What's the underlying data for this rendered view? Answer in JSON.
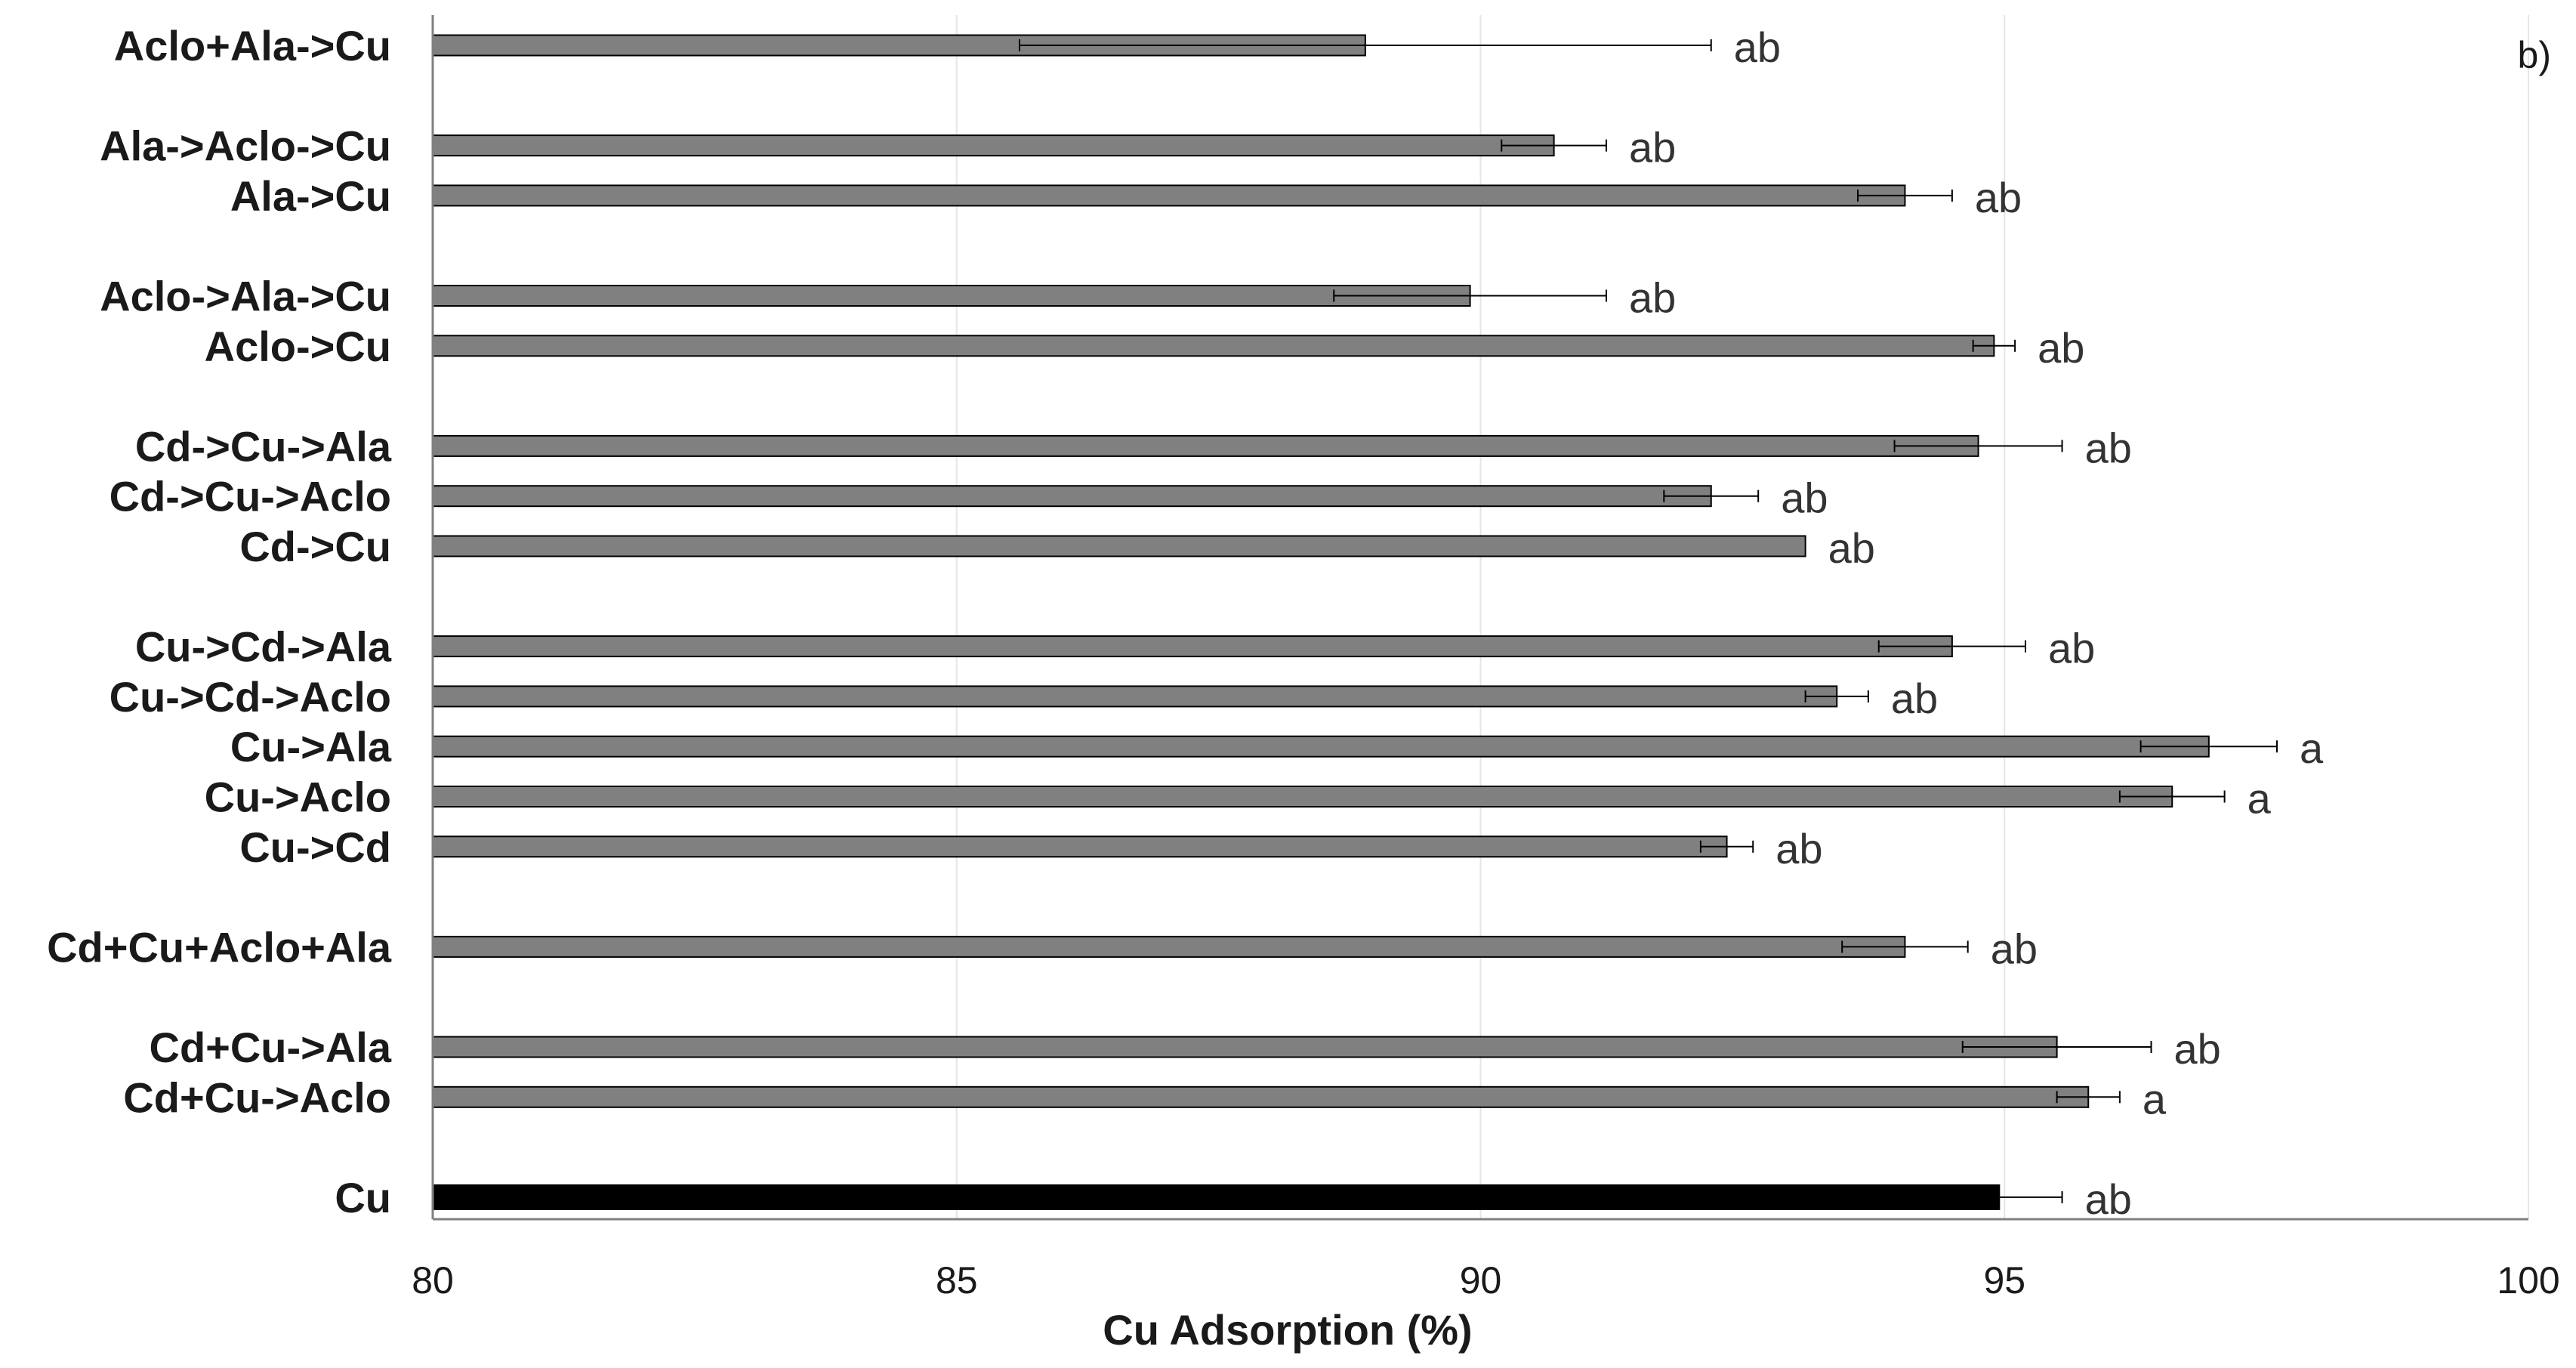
{
  "chart_data": {
    "type": "bar",
    "orientation": "horizontal",
    "panel_label": "b)",
    "xlabel": "Cu Adsorption (%)",
    "xlim": [
      80,
      100
    ],
    "xticks": [
      80,
      85,
      90,
      95,
      100
    ],
    "grid": "vertical",
    "categories": [
      "Aclo+Ala->Cu",
      "Ala->Aclo->Cu",
      "Ala->Cu",
      "Aclo->Ala->Cu",
      "Aclo->Cu",
      "Cd->Cu->Ala",
      "Cd->Cu->Aclo",
      "Cd->Cu",
      "Cu->Cd->Ala",
      "Cu->Cd->Aclo",
      "Cu->Ala",
      "Cu->Aclo",
      "Cu->Cd",
      "Cd+Cu+Aclo+Ala",
      "Cd+Cu->Ala",
      "Cd+Cu->Aclo",
      "Cu"
    ],
    "values": [
      88.9,
      90.7,
      94.05,
      89.9,
      94.9,
      94.75,
      92.2,
      93.1,
      94.5,
      93.4,
      96.95,
      96.6,
      92.35,
      94.05,
      95.5,
      95.8,
      94.95
    ],
    "errors": [
      3.3,
      0.5,
      0.45,
      1.3,
      0.2,
      0.8,
      0.45,
      0.0,
      0.7,
      0.3,
      0.65,
      0.5,
      0.25,
      0.6,
      0.9,
      0.3,
      0.6
    ],
    "significance": [
      "ab",
      "ab",
      "ab",
      "ab",
      "ab",
      "ab",
      "ab",
      "ab",
      "ab",
      "ab",
      "a",
      "a",
      "ab",
      "ab",
      "ab",
      "a",
      "ab"
    ],
    "colors": {
      "bar": "#808080",
      "bar_control": "#000000",
      "bar_edge": "#000000",
      "grid": "#e6e6e6",
      "axis": "#808080"
    }
  }
}
